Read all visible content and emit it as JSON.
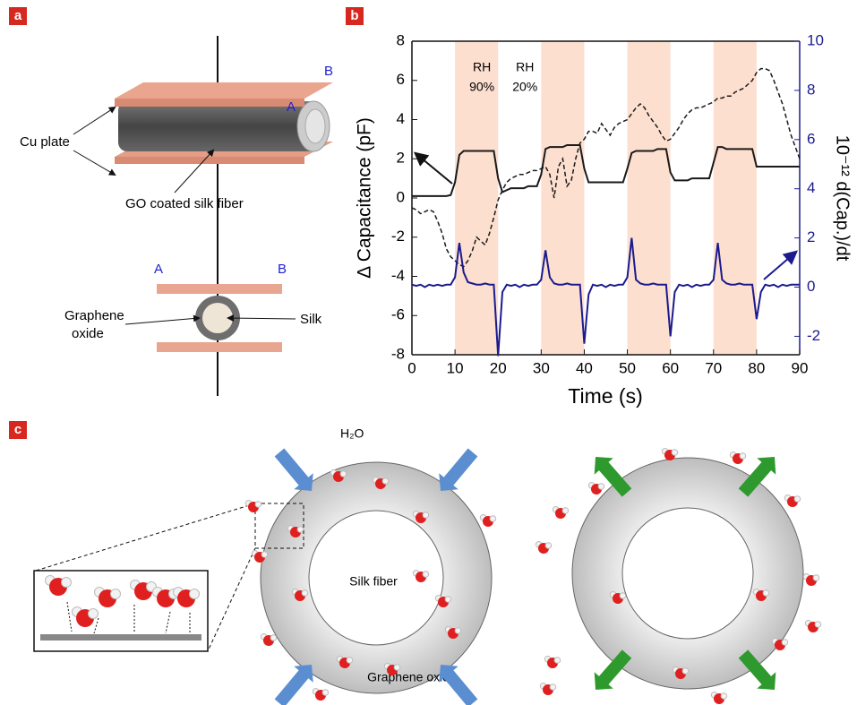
{
  "panel_labels": [
    "a",
    "b",
    "c"
  ],
  "panel_a": {
    "cu_plate": "Cu plate",
    "fiber": "GO coated silk fiber",
    "a_top": "A",
    "b_top": "B",
    "a_bottom": "A",
    "b_bottom": "B",
    "graphene_oxide": [
      "Graphene",
      "oxide"
    ],
    "silk": "Silk"
  },
  "panel_c": {
    "water": "H₂O",
    "silk_fiber": "Silk fiber",
    "graphene_oxide": "Graphene oxide"
  },
  "chart_data": {
    "type": "line",
    "xlabel": "Time (s)",
    "ylabel": "Δ Capacitance (pF)",
    "y2label": "10⁻¹² d(Cap.)/dt",
    "annotations": [
      [
        "RH",
        "90%"
      ],
      [
        "RH",
        "20%"
      ]
    ],
    "shaded_regions": [
      [
        10,
        20
      ],
      [
        30,
        40
      ],
      [
        50,
        60
      ],
      [
        70,
        80
      ]
    ],
    "shade_color": "#fcdfcf",
    "xlim": [
      0,
      90
    ],
    "xticks": [
      0,
      10,
      20,
      30,
      40,
      50,
      60,
      70,
      80,
      90
    ],
    "ylim": [
      -8,
      8
    ],
    "yticks": [
      -8,
      -6,
      -4,
      -2,
      0,
      2,
      4,
      6,
      8
    ],
    "y2lim": [
      -2.75,
      10
    ],
    "y2ticks": [
      -2,
      0,
      2,
      4,
      6,
      8,
      10
    ],
    "y2color": "#1b1b8f",
    "x": [
      0,
      1,
      2,
      3,
      4,
      5,
      6,
      7,
      8,
      9,
      10,
      11,
      12,
      13,
      14,
      15,
      16,
      17,
      18,
      19,
      20,
      21,
      22,
      23,
      24,
      25,
      26,
      27,
      28,
      29,
      30,
      31,
      32,
      33,
      34,
      35,
      36,
      37,
      38,
      39,
      40,
      41,
      42,
      43,
      44,
      45,
      46,
      47,
      48,
      49,
      50,
      51,
      52,
      53,
      54,
      55,
      56,
      57,
      58,
      59,
      60,
      61,
      62,
      63,
      64,
      65,
      66,
      67,
      68,
      69,
      70,
      71,
      72,
      73,
      74,
      75,
      76,
      77,
      78,
      79,
      80,
      81,
      82,
      83,
      84,
      85,
      86,
      87,
      88,
      89,
      90
    ],
    "series": [
      {
        "color": "#1a1a1a",
        "dash": false,
        "values": [
          0.1,
          0.1,
          0.1,
          0.1,
          0.1,
          0.1,
          0.1,
          0.1,
          0.1,
          0.15,
          0.8,
          2.2,
          2.4,
          2.4,
          2.4,
          2.4,
          2.4,
          2.4,
          2.4,
          2.4,
          1.0,
          0.3,
          0.4,
          0.5,
          0.5,
          0.5,
          0.5,
          0.6,
          0.6,
          0.6,
          1.2,
          2.5,
          2.6,
          2.6,
          2.6,
          2.6,
          2.7,
          2.7,
          2.7,
          2.7,
          1.5,
          0.8,
          0.8,
          0.8,
          0.8,
          0.8,
          0.8,
          0.8,
          0.8,
          0.8,
          1.5,
          2.3,
          2.4,
          2.4,
          2.4,
          2.4,
          2.4,
          2.5,
          2.5,
          2.5,
          1.3,
          0.9,
          0.9,
          0.9,
          0.9,
          1.0,
          1.0,
          1.0,
          1.0,
          1.0,
          1.8,
          2.6,
          2.6,
          2.5,
          2.5,
          2.5,
          2.5,
          2.5,
          2.5,
          2.5,
          1.6,
          1.6,
          1.6,
          1.6,
          1.6,
          1.6,
          1.6,
          1.6,
          1.6,
          1.6,
          1.6
        ]
      },
      {
        "color": "#1a1a1a",
        "dash": true,
        "values": [
          -0.5,
          -0.6,
          -0.8,
          -0.7,
          -0.6,
          -0.7,
          -1.2,
          -1.8,
          -2.6,
          -3.0,
          -3.2,
          -3.4,
          -3.5,
          -3.2,
          -2.7,
          -2.0,
          -2.2,
          -2.4,
          -1.8,
          -1.0,
          -0.1,
          0.4,
          0.8,
          1.0,
          1.1,
          1.2,
          1.2,
          1.3,
          1.4,
          1.4,
          1.5,
          1.6,
          1.2,
          0.0,
          1.6,
          2.0,
          0.6,
          0.9,
          2.0,
          2.8,
          3.0,
          3.4,
          3.4,
          3.3,
          3.8,
          3.5,
          3.2,
          3.6,
          3.8,
          3.9,
          4.0,
          4.3,
          4.6,
          4.8,
          4.6,
          4.2,
          3.9,
          3.6,
          3.2,
          2.9,
          3.0,
          3.3,
          3.6,
          4.0,
          4.3,
          4.5,
          4.6,
          4.6,
          4.7,
          4.8,
          4.9,
          5.1,
          5.1,
          5.2,
          5.2,
          5.4,
          5.5,
          5.6,
          5.8,
          6.0,
          6.4,
          6.6,
          6.6,
          6.5,
          6.0,
          5.4,
          4.8,
          4.0,
          3.2,
          2.6,
          2.0
        ]
      },
      {
        "color": "#1b1b8f",
        "dash": false,
        "axis": "y2",
        "values": [
          0.1,
          0.05,
          0.1,
          0.0,
          0.1,
          0.05,
          0.1,
          0.05,
          0.1,
          0.1,
          0.4,
          1.8,
          0.6,
          0.2,
          0.15,
          0.1,
          0.1,
          0.15,
          0.1,
          0.1,
          -2.8,
          -0.2,
          0.1,
          0.05,
          0.1,
          0.0,
          0.1,
          0.05,
          0.1,
          0.1,
          0.3,
          1.5,
          0.4,
          0.15,
          0.1,
          0.1,
          0.15,
          0.1,
          0.1,
          0.1,
          -2.3,
          -0.3,
          0.1,
          0.05,
          0.1,
          0.0,
          0.1,
          0.05,
          0.1,
          0.1,
          0.4,
          2.0,
          0.3,
          0.15,
          0.1,
          0.1,
          0.15,
          0.1,
          0.1,
          0.1,
          -2.0,
          -0.2,
          0.1,
          0.05,
          0.1,
          0.0,
          0.1,
          0.05,
          0.1,
          0.1,
          0.3,
          1.8,
          0.3,
          0.15,
          0.1,
          0.1,
          0.15,
          0.1,
          0.1,
          0.1,
          -1.3,
          -0.2,
          0.1,
          0.05,
          0.1,
          0.0,
          0.1,
          0.05,
          0.1,
          0.1,
          0.1
        ]
      }
    ]
  }
}
